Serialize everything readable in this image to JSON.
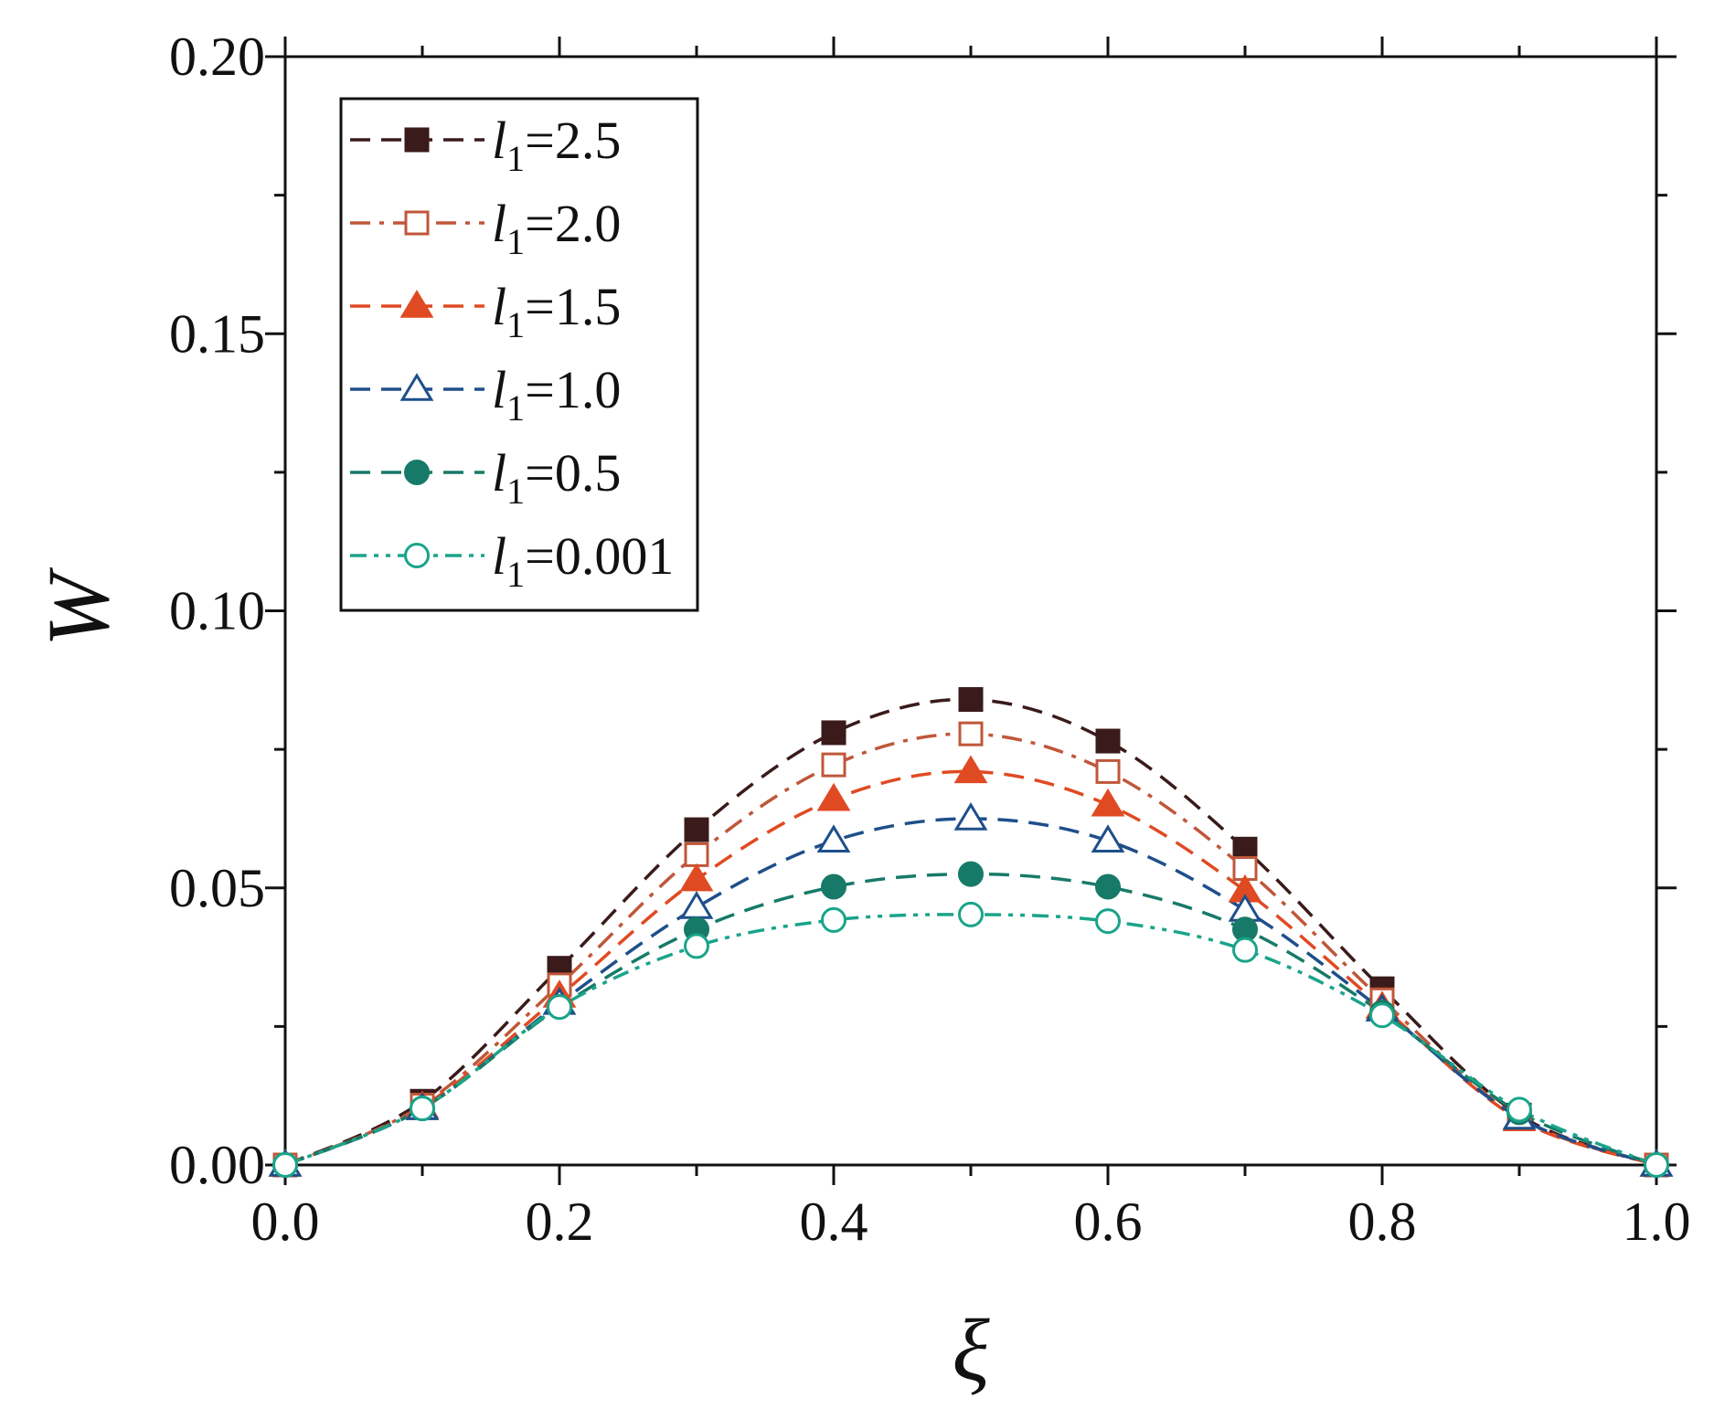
{
  "chart_data": {
    "type": "line",
    "title": "",
    "xlabel": "ξ",
    "ylabel": "W",
    "xlim": [
      0.0,
      1.0
    ],
    "ylim": [
      0.0,
      0.2
    ],
    "x_ticks": [
      "0.0",
      "0.2",
      "0.4",
      "0.6",
      "0.8",
      "1.0"
    ],
    "y_ticks": [
      "0.00",
      "0.05",
      "0.10",
      "0.15",
      "0.20"
    ],
    "x": [
      0.0,
      0.1,
      0.2,
      0.3,
      0.4,
      0.5,
      0.6,
      0.7,
      0.8,
      0.9,
      1.0
    ],
    "grid": false,
    "legend_position": "top-left",
    "series": [
      {
        "name": "=2.5",
        "symbol": "l",
        "subscript": "1",
        "color": "#3a1a1a",
        "marker": "square-filled",
        "dash": "dashed",
        "values": [
          0.0,
          0.0115,
          0.0355,
          0.0605,
          0.078,
          0.084,
          0.0765,
          0.057,
          0.0318,
          0.009,
          0.0
        ]
      },
      {
        "name": "=2.0",
        "symbol": "l",
        "subscript": "1",
        "color": "#c0573a",
        "marker": "square-open",
        "dash": "dash-dot",
        "values": [
          0.0,
          0.0108,
          0.0325,
          0.056,
          0.0722,
          0.0778,
          0.071,
          0.0535,
          0.0298,
          0.0085,
          0.0
        ]
      },
      {
        "name": "=1.5",
        "symbol": "l",
        "subscript": "1",
        "color": "#e04a22",
        "marker": "triangle-filled",
        "dash": "dashed",
        "values": [
          0.0,
          0.0105,
          0.0305,
          0.0515,
          0.066,
          0.071,
          0.065,
          0.0495,
          0.0285,
          0.0082,
          0.0
        ]
      },
      {
        "name": "=1.0",
        "symbol": "l",
        "subscript": "1",
        "color": "#1e4f8a",
        "marker": "triangle-open",
        "dash": "dashed",
        "values": [
          0.0,
          0.0102,
          0.0292,
          0.0465,
          0.0585,
          0.0625,
          0.0585,
          0.046,
          0.028,
          0.0085,
          0.0
        ]
      },
      {
        "name": "=0.5",
        "symbol": "l",
        "subscript": "1",
        "color": "#177a68",
        "marker": "circle-filled",
        "dash": "dashed",
        "values": [
          0.0,
          0.0102,
          0.0285,
          0.0425,
          0.0502,
          0.0525,
          0.0502,
          0.0425,
          0.0275,
          0.0095,
          0.0
        ]
      },
      {
        "name": "=0.001",
        "symbol": "l",
        "subscript": "1",
        "color": "#1aa48a",
        "marker": "circle-open",
        "dash": "dash-dot-dot",
        "values": [
          0.0,
          0.0102,
          0.0285,
          0.0395,
          0.0442,
          0.0452,
          0.044,
          0.0388,
          0.027,
          0.01,
          0.0
        ]
      }
    ]
  }
}
